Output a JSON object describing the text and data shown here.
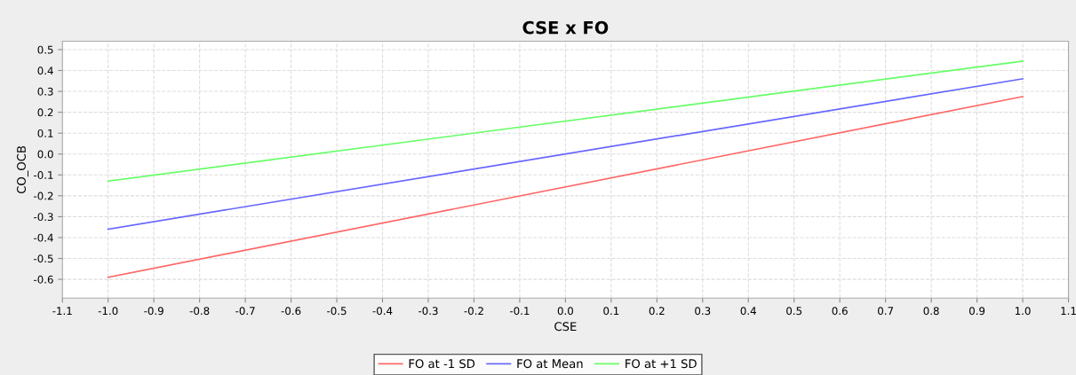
{
  "chart_data": {
    "type": "line",
    "title": "CSE x FO",
    "xlabel": "CSE",
    "ylabel": "CO_OCB",
    "x": [
      -1.0,
      1.0
    ],
    "series": [
      {
        "name": "FO at -1 SD",
        "color": "#ff6666",
        "values": [
          -0.59,
          0.275
        ]
      },
      {
        "name": "FO at Mean",
        "color": "#6666ff",
        "values": [
          -0.36,
          0.36
        ]
      },
      {
        "name": "FO at +1 SD",
        "color": "#66ff66",
        "values": [
          -0.13,
          0.445
        ]
      }
    ],
    "xlim": [
      -1.1,
      1.1
    ],
    "ylim": [
      -0.69,
      0.54
    ],
    "xticks": [
      -1.1,
      {
        "value": -1,
        "label": "-1.0"
      },
      -0.9,
      -0.8,
      -0.7,
      -0.6,
      -0.5,
      -0.4,
      -0.3,
      -0.2,
      -0.1,
      {
        "value": 0,
        "label": "0.0"
      },
      0.1,
      0.2,
      0.3,
      0.4,
      0.5,
      0.6,
      0.7,
      0.8,
      0.9,
      {
        "value": 1,
        "label": "1.0"
      },
      1.1
    ],
    "yticks": [
      -0.6,
      -0.5,
      -0.4,
      -0.3,
      -0.2,
      -0.1,
      {
        "value": 0,
        "label": "0.0"
      },
      0.1,
      0.2,
      0.3,
      0.4,
      0.5
    ],
    "grid": true,
    "legend": "bottom",
    "marker": "none",
    "line_style": "solid"
  }
}
